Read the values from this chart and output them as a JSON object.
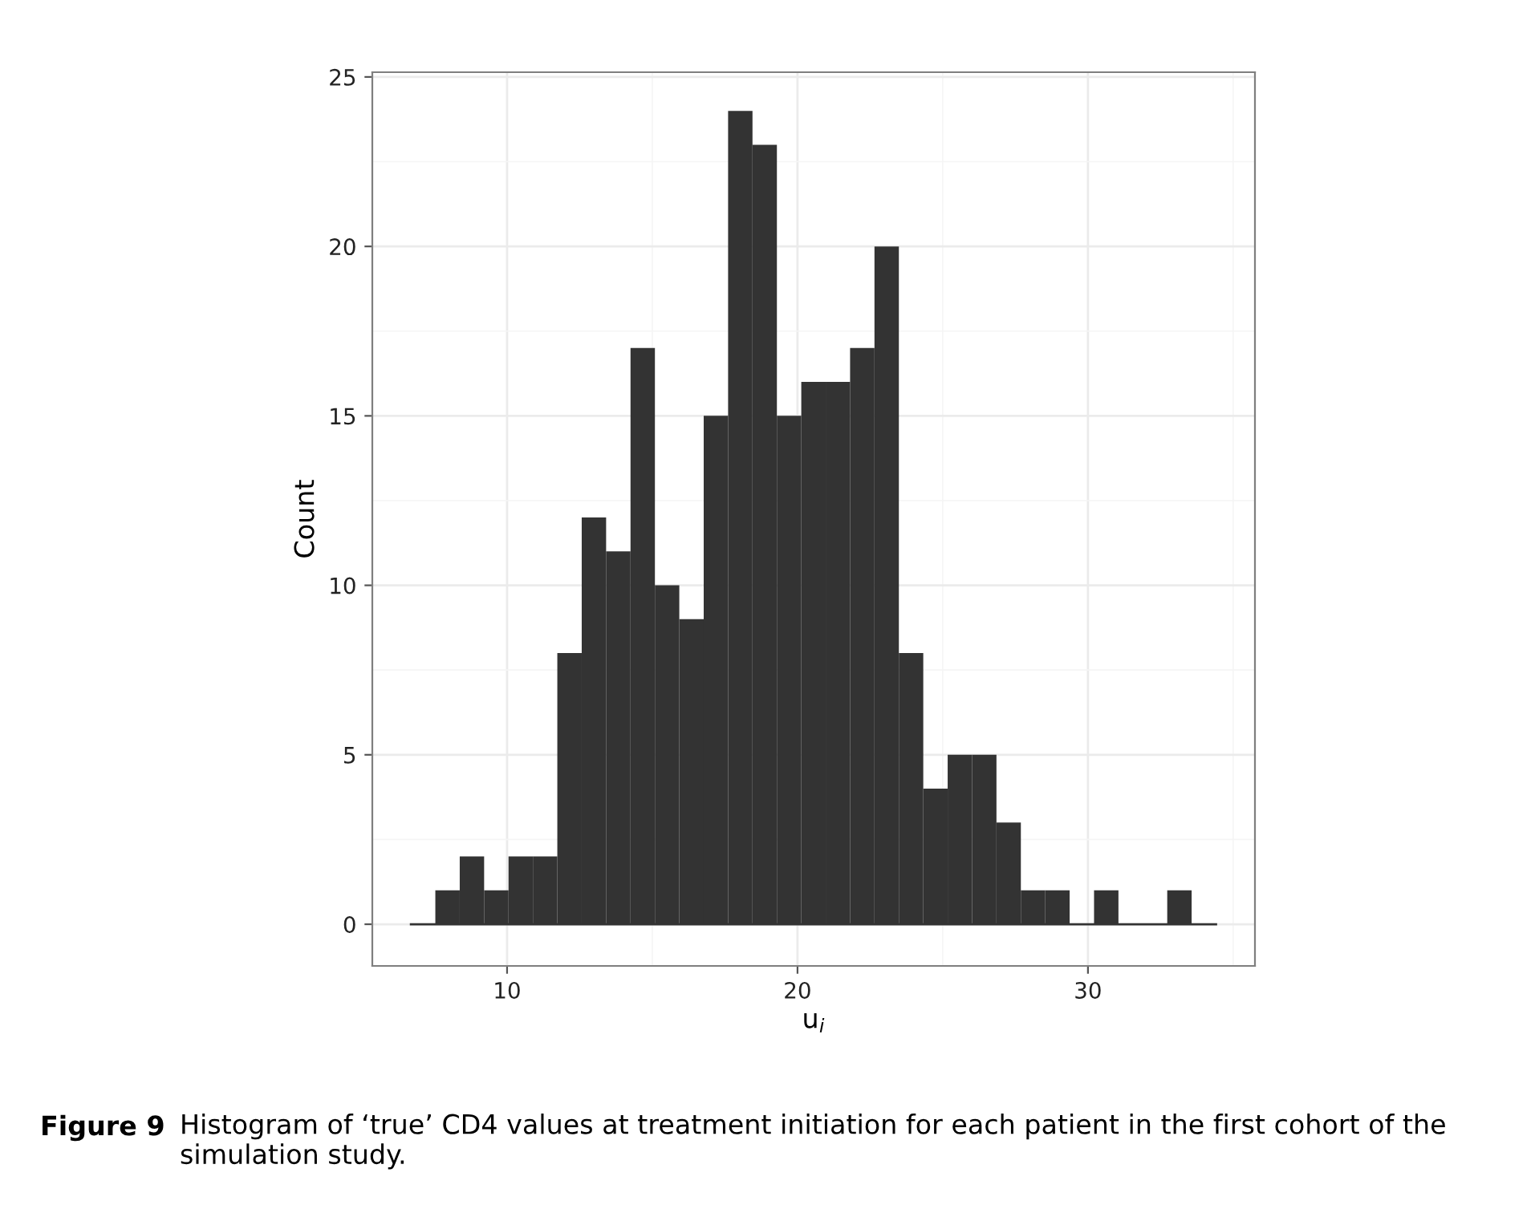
{
  "chart_data": {
    "type": "histogram",
    "bins": [
      6.69,
      7.53,
      8.37,
      9.21,
      10.05,
      10.89,
      11.73,
      12.57,
      13.41,
      14.25,
      15.09,
      15.93,
      16.77,
      17.61,
      18.45,
      19.29,
      20.13,
      20.97,
      21.81,
      22.65,
      23.49,
      24.33,
      25.17,
      26.01,
      26.85,
      27.69,
      28.53,
      29.37,
      30.21,
      31.05,
      31.89,
      32.73,
      33.57,
      34.41
    ],
    "values": [
      0,
      1,
      2,
      1,
      2,
      2,
      8,
      12,
      11,
      17,
      10,
      9,
      15,
      24,
      23,
      15,
      16,
      16,
      17,
      20,
      8,
      4,
      5,
      5,
      3,
      1,
      1,
      0,
      1,
      0,
      0,
      1,
      0
    ],
    "color": "#333333",
    "xlabel": "u$_{i}$",
    "ylabel": "Count",
    "xlim": [
      5.36,
      35.75
    ],
    "xticks": [
      10,
      20,
      30
    ],
    "ylim": [
      -1.23,
      25.14
    ],
    "yticks": [
      0,
      5,
      10,
      15,
      20,
      25
    ],
    "grid": true,
    "annotations": [
      "Figure 9",
      "Histogram of ‘true’ CD4 values at treatment initiation for each patient in the first cohort of the simulation study."
    ]
  }
}
